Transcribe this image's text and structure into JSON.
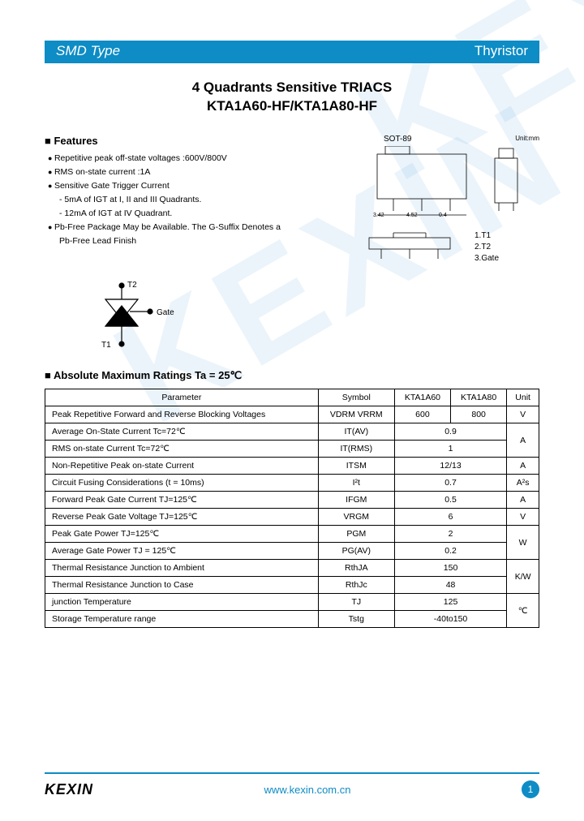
{
  "header": {
    "left": "SMD Type",
    "right": "Thyristor"
  },
  "title": "4 Quadrants Sensitive TRIACS",
  "subtitle": "KTA1A60-HF/KTA1A80-HF",
  "package_label": "SOT-89",
  "unit_label": "Unit:mm",
  "features_heading": "Features",
  "features": [
    {
      "type": "bullet",
      "text": "Repetitive peak off-state voltages :600V/800V"
    },
    {
      "type": "bullet",
      "text": "RMS on-state current :1A"
    },
    {
      "type": "bullet",
      "text": "Sensitive Gate Trigger Current"
    },
    {
      "type": "dash",
      "text": "5mA of IGT at I, II and III Quadrants."
    },
    {
      "type": "dash",
      "text": "12mA of IGT at IV Quadrant."
    },
    {
      "type": "bullet",
      "text": "Pb-Free Package May be Available. The G-Suffix Denotes a"
    },
    {
      "type": "plain",
      "text": "Pb-Free Lead Finish"
    }
  ],
  "pins": [
    "1.T1",
    "2.T2",
    "3.Gate"
  ],
  "symbol_labels": {
    "t1": "T1",
    "t2": "T2",
    "gate": "Gate"
  },
  "ratings_heading": "Absolute Maximum Ratings Ta = 25℃",
  "table": {
    "headers": [
      "Parameter",
      "Symbol",
      "KTA1A60",
      "KTA1A80",
      "Unit"
    ],
    "rows": [
      {
        "param": "Peak Repetitive Forward and Reverse Blocking Voltages",
        "symbol": "VDRM\nVRRM",
        "v1": "600",
        "v2": "800",
        "unit": "V"
      },
      {
        "param": "Average On-State Current  Tc=72℃",
        "symbol": "IT(AV)",
        "v12": "0.9",
        "unit_rs": 2,
        "unit": "A"
      },
      {
        "param": "RMS on-state Current  Tc=72℃",
        "symbol": "IT(RMS)",
        "v12": "1"
      },
      {
        "param": "Non-Repetitive Peak on-state Current",
        "symbol": "ITSM",
        "v12": "12/13",
        "unit": "A"
      },
      {
        "param": "Circuit Fusing Considerations   (t = 10ms)",
        "symbol": "I²t",
        "v12": "0.7",
        "unit": "A²s"
      },
      {
        "param": "Forward Peak Gate Current  TJ=125℃",
        "symbol": "IFGM",
        "v12": "0.5",
        "unit": "A"
      },
      {
        "param": "Reverse Peak Gate Voltage  TJ=125℃",
        "symbol": "VRGM",
        "v12": "6",
        "unit": "V"
      },
      {
        "param": "Peak Gate Power  TJ=125℃",
        "symbol": "PGM",
        "v12": "2",
        "unit_rs": 2,
        "unit": "W"
      },
      {
        "param": "Average Gate Power   TJ = 125℃",
        "symbol": "PG(AV)",
        "v12": "0.2"
      },
      {
        "param": "Thermal  Resistance Junction to Ambient",
        "symbol": "RthJA",
        "v12": "150",
        "unit_rs": 2,
        "unit": "K/W"
      },
      {
        "param": "Thermal  Resistance Junction to Case",
        "symbol": "RthJc",
        "v12": "48"
      },
      {
        "param": "junction  Temperature",
        "symbol": "TJ",
        "v12": "125",
        "unit_rs": 2,
        "unit": "℃"
      },
      {
        "param": "Storage  Temperature range",
        "symbol": "Tstg",
        "v12": "-40to150"
      }
    ]
  },
  "footer": {
    "logo": "KEXIN",
    "url": "www.kexin.com.cn",
    "page": "1"
  },
  "colors": {
    "brand": "#0d8cc5"
  }
}
